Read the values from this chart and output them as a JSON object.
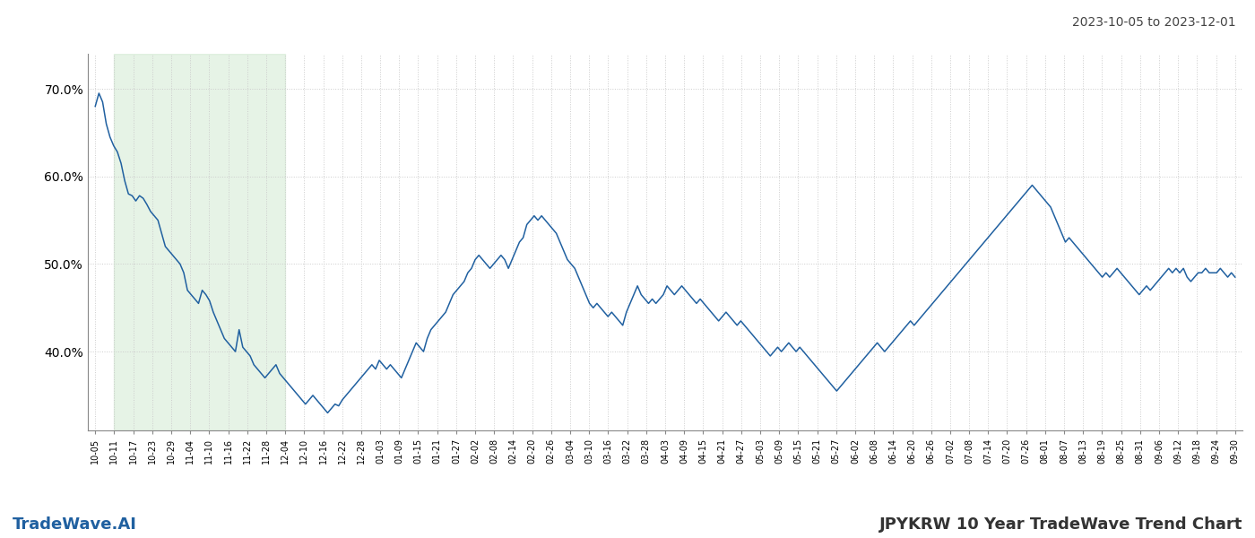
{
  "title_top_right": "2023-10-05 to 2023-12-01",
  "label_left": "TradeWave.AI",
  "label_right": "JPYKRW 10 Year TradeWave Trend Chart",
  "line_color": "#2060a0",
  "shade_color": "#c8e6c8",
  "shade_alpha": 0.45,
  "background_color": "#ffffff",
  "grid_color": "#cccccc",
  "ylim_min": 31,
  "ylim_max": 74,
  "yticks": [
    40.0,
    50.0,
    60.0,
    70.0
  ],
  "x_labels": [
    "10-05",
    "10-11",
    "10-17",
    "10-23",
    "10-29",
    "11-04",
    "11-10",
    "11-16",
    "11-22",
    "11-28",
    "12-04",
    "12-10",
    "12-16",
    "12-22",
    "12-28",
    "01-03",
    "01-09",
    "01-15",
    "01-21",
    "01-27",
    "02-02",
    "02-08",
    "02-14",
    "02-20",
    "02-26",
    "03-04",
    "03-10",
    "03-16",
    "03-22",
    "03-28",
    "04-03",
    "04-09",
    "04-15",
    "04-21",
    "04-27",
    "05-03",
    "05-09",
    "05-15",
    "05-21",
    "05-27",
    "06-02",
    "06-08",
    "06-14",
    "06-20",
    "06-26",
    "07-02",
    "07-08",
    "07-14",
    "07-20",
    "07-26",
    "08-01",
    "08-07",
    "08-13",
    "08-19",
    "08-25",
    "08-31",
    "09-06",
    "09-12",
    "09-18",
    "09-24",
    "09-30"
  ],
  "shade_start_label": "10-11",
  "shade_end_label": "12-04",
  "values": [
    68.0,
    69.5,
    68.5,
    66.0,
    64.5,
    63.5,
    62.8,
    61.5,
    59.5,
    58.0,
    57.8,
    57.2,
    57.8,
    57.5,
    56.8,
    56.0,
    55.5,
    55.0,
    53.5,
    52.0,
    51.5,
    51.0,
    50.5,
    50.0,
    49.0,
    47.0,
    46.5,
    46.0,
    45.5,
    47.0,
    46.5,
    45.8,
    44.5,
    43.5,
    42.5,
    41.5,
    41.0,
    40.5,
    40.0,
    42.5,
    40.5,
    40.0,
    39.5,
    38.5,
    38.0,
    37.5,
    37.0,
    37.5,
    38.0,
    38.5,
    37.5,
    37.0,
    36.5,
    36.0,
    35.5,
    35.0,
    34.5,
    34.0,
    34.5,
    35.0,
    34.5,
    34.0,
    33.5,
    33.0,
    33.5,
    34.0,
    33.8,
    34.5,
    35.0,
    35.5,
    36.0,
    36.5,
    37.0,
    37.5,
    38.0,
    38.5,
    38.0,
    39.0,
    38.5,
    38.0,
    38.5,
    38.0,
    37.5,
    37.0,
    38.0,
    39.0,
    40.0,
    41.0,
    40.5,
    40.0,
    41.5,
    42.5,
    43.0,
    43.5,
    44.0,
    44.5,
    45.5,
    46.5,
    47.0,
    47.5,
    48.0,
    49.0,
    49.5,
    50.5,
    51.0,
    50.5,
    50.0,
    49.5,
    50.0,
    50.5,
    51.0,
    50.5,
    49.5,
    50.5,
    51.5,
    52.5,
    53.0,
    54.5,
    55.0,
    55.5,
    55.0,
    55.5,
    55.0,
    54.5,
    54.0,
    53.5,
    52.5,
    51.5,
    50.5,
    50.0,
    49.5,
    48.5,
    47.5,
    46.5,
    45.5,
    45.0,
    45.5,
    45.0,
    44.5,
    44.0,
    44.5,
    44.0,
    43.5,
    43.0,
    44.5,
    45.5,
    46.5,
    47.5,
    46.5,
    46.0,
    45.5,
    46.0,
    45.5,
    46.0,
    46.5,
    47.5,
    47.0,
    46.5,
    47.0,
    47.5,
    47.0,
    46.5,
    46.0,
    45.5,
    46.0,
    45.5,
    45.0,
    44.5,
    44.0,
    43.5,
    44.0,
    44.5,
    44.0,
    43.5,
    43.0,
    43.5,
    43.0,
    42.5,
    42.0,
    41.5,
    41.0,
    40.5,
    40.0,
    39.5,
    40.0,
    40.5,
    40.0,
    40.5,
    41.0,
    40.5,
    40.0,
    40.5,
    40.0,
    39.5,
    39.0,
    38.5,
    38.0,
    37.5,
    37.0,
    36.5,
    36.0,
    35.5,
    36.0,
    36.5,
    37.0,
    37.5,
    38.0,
    38.5,
    39.0,
    39.5,
    40.0,
    40.5,
    41.0,
    40.5,
    40.0,
    40.5,
    41.0,
    41.5,
    42.0,
    42.5,
    43.0,
    43.5,
    43.0,
    43.5,
    44.0,
    44.5,
    45.0,
    45.5,
    46.0,
    46.5,
    47.0,
    47.5,
    48.0,
    48.5,
    49.0,
    49.5,
    50.0,
    50.5,
    51.0,
    51.5,
    52.0,
    52.5,
    53.0,
    53.5,
    54.0,
    54.5,
    55.0,
    55.5,
    56.0,
    56.5,
    57.0,
    57.5,
    58.0,
    58.5,
    59.0,
    58.5,
    58.0,
    57.5,
    57.0,
    56.5,
    55.5,
    54.5,
    53.5,
    52.5,
    53.0,
    52.5,
    52.0,
    51.5,
    51.0,
    50.5,
    50.0,
    49.5,
    49.0,
    48.5,
    49.0,
    48.5,
    49.0,
    49.5,
    49.0,
    48.5,
    48.0,
    47.5,
    47.0,
    46.5,
    47.0,
    47.5,
    47.0,
    47.5,
    48.0,
    48.5,
    49.0,
    49.5,
    49.0,
    49.5,
    49.0,
    49.5,
    48.5,
    48.0,
    48.5,
    49.0,
    49.0,
    49.5,
    49.0,
    49.0,
    49.0,
    49.5,
    49.0,
    48.5,
    49.0,
    48.5
  ]
}
